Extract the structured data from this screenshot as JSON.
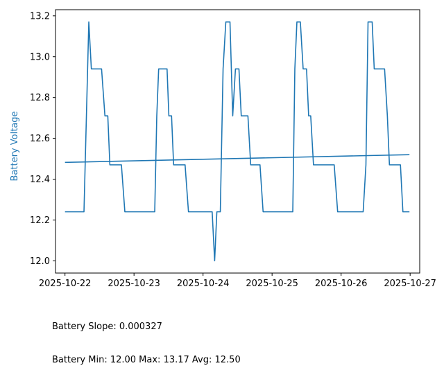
{
  "chart_data": {
    "type": "line",
    "title": "",
    "xlabel": "",
    "ylabel": "Battery Voltage",
    "ylabel_color": "#1f77b4",
    "line_color": "#1f77b4",
    "grid": false,
    "xlim": [
      "2025-10-21T20:42",
      "2025-10-27T03:20"
    ],
    "ylim": [
      11.94,
      13.23
    ],
    "xticks": [
      "2025-10-22",
      "2025-10-23",
      "2025-10-24",
      "2025-10-25",
      "2025-10-26",
      "2025-10-27"
    ],
    "yticks": [
      "12.0",
      "12.2",
      "12.4",
      "12.6",
      "12.8",
      "13.0",
      "13.2"
    ],
    "series": [
      {
        "kind": "voltage",
        "points": [
          [
            "2025-10-22T00:00",
            12.24
          ],
          [
            "2025-10-22T06:36",
            12.24
          ],
          [
            "2025-10-22T08:17",
            13.17
          ],
          [
            "2025-10-22T09:10",
            12.94
          ],
          [
            "2025-10-22T12:43",
            12.94
          ],
          [
            "2025-10-22T13:53",
            12.71
          ],
          [
            "2025-10-22T14:53",
            12.71
          ],
          [
            "2025-10-22T15:36",
            12.47
          ],
          [
            "2025-10-22T19:37",
            12.47
          ],
          [
            "2025-10-22T20:49",
            12.24
          ],
          [
            "2025-10-23T07:12",
            12.24
          ],
          [
            "2025-10-23T07:55",
            12.71
          ],
          [
            "2025-10-23T08:34",
            12.94
          ],
          [
            "2025-10-23T11:29",
            12.94
          ],
          [
            "2025-10-23T12:07",
            12.71
          ],
          [
            "2025-10-23T13:03",
            12.71
          ],
          [
            "2025-10-23T13:46",
            12.47
          ],
          [
            "2025-10-23T17:45",
            12.47
          ],
          [
            "2025-10-23T18:56",
            12.24
          ],
          [
            "2025-10-24T03:10",
            12.24
          ],
          [
            "2025-10-24T04:02",
            12.0
          ],
          [
            "2025-10-24T04:48",
            12.24
          ],
          [
            "2025-10-24T06:00",
            12.24
          ],
          [
            "2025-10-24T06:58",
            12.94
          ],
          [
            "2025-10-24T07:55",
            13.17
          ],
          [
            "2025-10-24T09:22",
            13.17
          ],
          [
            "2025-10-24T10:19",
            12.71
          ],
          [
            "2025-10-24T11:16",
            12.94
          ],
          [
            "2025-10-24T12:29",
            12.94
          ],
          [
            "2025-10-24T13:17",
            12.71
          ],
          [
            "2025-10-24T15:36",
            12.71
          ],
          [
            "2025-10-24T16:34",
            12.47
          ],
          [
            "2025-10-24T19:48",
            12.47
          ],
          [
            "2025-10-24T20:53",
            12.24
          ],
          [
            "2025-10-25T07:12",
            12.24
          ],
          [
            "2025-10-25T07:55",
            12.94
          ],
          [
            "2025-10-25T08:38",
            13.17
          ],
          [
            "2025-10-25T09:50",
            13.17
          ],
          [
            "2025-10-25T10:48",
            12.94
          ],
          [
            "2025-10-25T11:59",
            12.94
          ],
          [
            "2025-10-25T12:43",
            12.71
          ],
          [
            "2025-10-25T13:26",
            12.71
          ],
          [
            "2025-10-25T14:24",
            12.47
          ],
          [
            "2025-10-25T21:36",
            12.47
          ],
          [
            "2025-10-25T22:48",
            12.24
          ],
          [
            "2025-10-26T07:40",
            12.24
          ],
          [
            "2025-10-26T08:38",
            12.47
          ],
          [
            "2025-10-26T09:22",
            13.17
          ],
          [
            "2025-10-26T10:48",
            13.17
          ],
          [
            "2025-10-26T11:31",
            12.94
          ],
          [
            "2025-10-26T15:07",
            12.94
          ],
          [
            "2025-10-26T16:05",
            12.71
          ],
          [
            "2025-10-26T16:48",
            12.47
          ],
          [
            "2025-10-26T20:38",
            12.47
          ],
          [
            "2025-10-26T21:29",
            12.24
          ],
          [
            "2025-10-26T23:46",
            12.24
          ]
        ]
      },
      {
        "kind": "trend",
        "points": [
          [
            "2025-10-22T00:00",
            12.482
          ],
          [
            "2025-10-26T23:46",
            12.52
          ]
        ]
      }
    ]
  },
  "stats": {
    "slope_text": "Battery Slope: 0.000327",
    "range_text": "Battery Min: 12.00 Max: 13.17 Avg: 12.50"
  }
}
